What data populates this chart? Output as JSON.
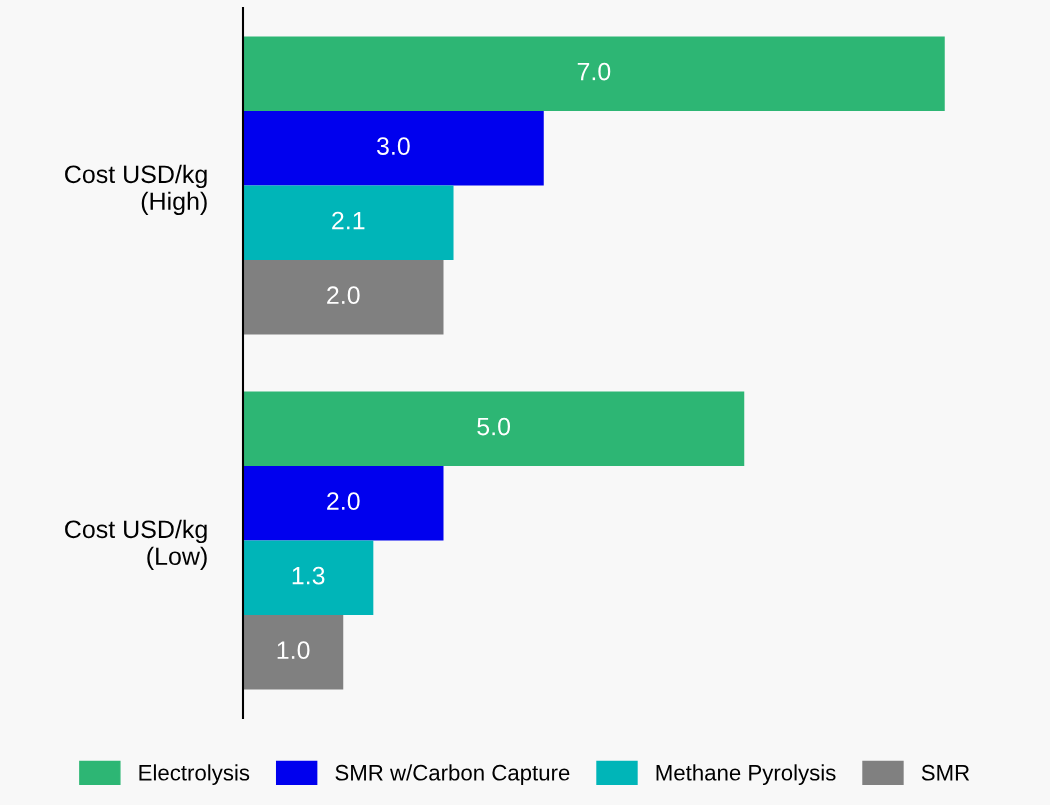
{
  "chart_data": {
    "type": "bar",
    "orientation": "horizontal",
    "categories": [
      "Cost USD/kg\n(High)",
      "Cost USD/kg\n(Low)"
    ],
    "series": [
      {
        "name": "Electrolysis",
        "color": "#2db674",
        "values": [
          7,
          5
        ],
        "value_labels": [
          "7.0",
          "5.0"
        ]
      },
      {
        "name": "SMR w/Carbon Capture",
        "color": "#0000ee",
        "values": [
          3,
          2
        ],
        "value_labels": [
          "3.0",
          "2.0"
        ]
      },
      {
        "name": "Methane Pyrolysis",
        "color": "#00b5b8",
        "values": [
          2.1,
          1.3
        ],
        "value_labels": [
          "2.1",
          "1.3"
        ]
      },
      {
        "name": "SMR",
        "color": "#808080",
        "values": [
          2,
          1
        ],
        "value_labels": [
          "2.0",
          "1.0"
        ]
      }
    ],
    "xlim": [
      0,
      8
    ],
    "tick_labels": "y",
    "legend": "bottom"
  }
}
